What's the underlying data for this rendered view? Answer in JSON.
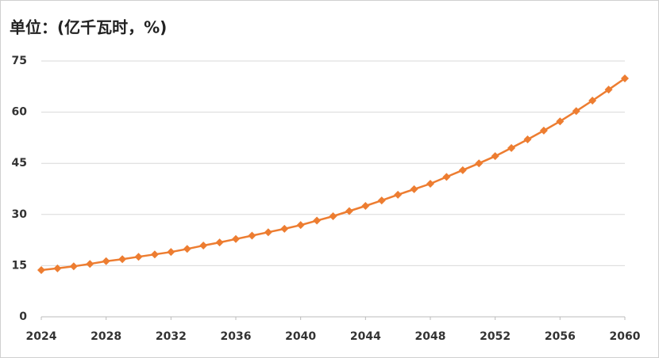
{
  "chart_data": {
    "type": "line",
    "title": "单位：(亿千瓦时，%)",
    "x": [
      2024,
      2025,
      2026,
      2027,
      2028,
      2029,
      2030,
      2031,
      2032,
      2033,
      2034,
      2035,
      2036,
      2037,
      2038,
      2039,
      2040,
      2041,
      2042,
      2043,
      2044,
      2045,
      2046,
      2047,
      2048,
      2049,
      2050,
      2051,
      2052,
      2053,
      2054,
      2055,
      2056,
      2057,
      2058,
      2059,
      2060
    ],
    "values": [
      13.7,
      14.2,
      14.8,
      15.5,
      16.3,
      16.9,
      17.6,
      18.3,
      19.0,
      19.9,
      20.9,
      21.8,
      22.8,
      23.8,
      24.8,
      25.8,
      26.9,
      28.2,
      29.5,
      31.0,
      32.5,
      34.1,
      35.8,
      37.4,
      39.0,
      41.0,
      43.0,
      45.0,
      47.1,
      49.5,
      52.0,
      54.6,
      57.3,
      60.3,
      63.4,
      66.6,
      69.9
    ],
    "color": "#ED7D31",
    "xlim": [
      2024,
      2060
    ],
    "xticks": [
      2024,
      2028,
      2032,
      2036,
      2040,
      2044,
      2048,
      2052,
      2056,
      2060
    ],
    "ylim": [
      0,
      75
    ],
    "yticks": [
      0,
      15,
      30,
      45,
      60,
      75
    ],
    "grid": true
  }
}
